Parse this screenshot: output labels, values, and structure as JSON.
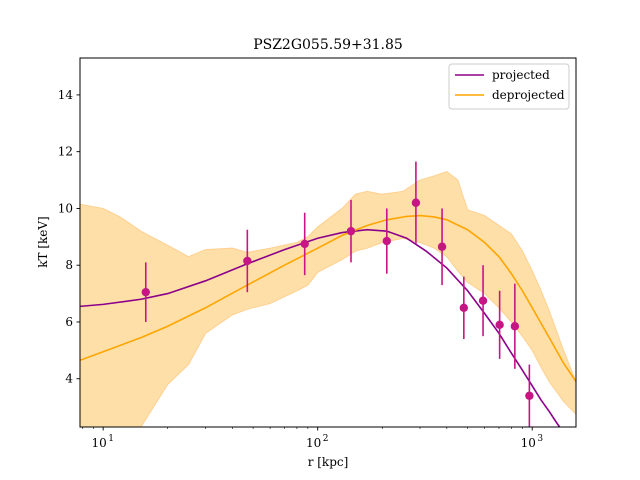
{
  "chart_data": {
    "type": "line",
    "title": "PSZ2G055.59+31.85",
    "xlabel": "r [kpc]",
    "ylabel": "kT [keV]",
    "xscale": "log",
    "xlim": [
      7.8,
      1600
    ],
    "ylim": [
      2.3,
      15.3
    ],
    "x_ticks": [
      {
        "value": 10,
        "label": "10"
      },
      {
        "value": 100,
        "label": "10"
      },
      {
        "value": 1000,
        "label": "10"
      }
    ],
    "x_tick_exponents": [
      "1",
      "2",
      "3"
    ],
    "y_ticks": [
      4,
      6,
      8,
      10,
      12,
      14
    ],
    "grid": false,
    "legend_position": "top-right",
    "colors": {
      "projected": "#8b008b",
      "deprojected": "#ffa500",
      "band": "#ffdfa8",
      "data_points": "#c71585"
    },
    "series": [
      {
        "name": "projected",
        "kind": "line",
        "x": [
          7.8,
          10,
          15,
          20,
          30,
          47,
          70,
          100,
          130,
          170,
          210,
          260,
          320,
          400,
          500,
          600,
          700,
          800,
          900,
          1000,
          1100,
          1200,
          1300,
          1400,
          1500,
          1600
        ],
        "y": [
          6.55,
          6.62,
          6.8,
          7.0,
          7.45,
          8.05,
          8.55,
          8.95,
          9.15,
          9.25,
          9.2,
          8.95,
          8.5,
          7.9,
          7.1,
          6.3,
          5.6,
          4.9,
          4.3,
          3.75,
          3.25,
          2.85,
          2.45,
          2.1,
          1.8,
          1.5
        ]
      },
      {
        "name": "deprojected",
        "kind": "line",
        "x": [
          7.8,
          10,
          15,
          20,
          30,
          47,
          70,
          100,
          130,
          170,
          210,
          260,
          300,
          350,
          400,
          500,
          600,
          700,
          800,
          900,
          1000,
          1200,
          1400,
          1600
        ],
        "y": [
          4.65,
          4.95,
          5.45,
          5.85,
          6.5,
          7.3,
          8.0,
          8.6,
          9.05,
          9.4,
          9.6,
          9.72,
          9.75,
          9.7,
          9.6,
          9.25,
          8.8,
          8.3,
          7.7,
          7.1,
          6.5,
          5.45,
          4.55,
          3.9
        ]
      }
    ],
    "band": {
      "name": "deprojected uncertainty",
      "x": [
        7.8,
        10,
        12,
        15,
        20,
        25,
        30,
        40,
        47,
        60,
        80,
        90,
        100,
        130,
        150,
        170,
        200,
        250,
        300,
        350,
        400,
        450,
        500,
        600,
        700,
        800,
        900,
        1000,
        1100,
        1200,
        1400,
        1600
      ],
      "upper": [
        10.15,
        10.0,
        9.7,
        9.2,
        8.7,
        8.3,
        8.55,
        8.6,
        8.45,
        8.6,
        8.8,
        9.0,
        9.35,
        10.0,
        10.5,
        10.6,
        10.5,
        10.6,
        11.0,
        11.15,
        11.3,
        11.0,
        9.95,
        9.75,
        9.4,
        9.1,
        8.5,
        7.8,
        7.1,
        6.4,
        5.0,
        3.9
      ],
      "lower": [
        2.3,
        2.3,
        2.3,
        2.3,
        3.8,
        4.5,
        5.6,
        6.25,
        6.45,
        6.65,
        7.1,
        7.3,
        7.75,
        8.2,
        8.5,
        8.6,
        8.8,
        8.95,
        8.8,
        8.6,
        8.3,
        7.8,
        7.4,
        7.0,
        6.5,
        6.0,
        5.5,
        5.0,
        4.4,
        3.9,
        3.2,
        2.75
      ]
    },
    "data_points": [
      {
        "x": 15.8,
        "y": 7.05,
        "err": 1.05
      },
      {
        "x": 47,
        "y": 8.15,
        "err": 1.1
      },
      {
        "x": 87,
        "y": 8.75,
        "err": 1.1
      },
      {
        "x": 143,
        "y": 9.2,
        "err": 1.1
      },
      {
        "x": 210,
        "y": 8.85,
        "err": 1.15
      },
      {
        "x": 287,
        "y": 10.2,
        "err": 1.45
      },
      {
        "x": 380,
        "y": 8.65,
        "err": 1.35
      },
      {
        "x": 480,
        "y": 6.5,
        "err": 1.1
      },
      {
        "x": 590,
        "y": 6.75,
        "err": 1.25
      },
      {
        "x": 705,
        "y": 5.9,
        "err": 1.2
      },
      {
        "x": 830,
        "y": 5.85,
        "err": 1.5
      },
      {
        "x": 970,
        "y": 3.4,
        "err": 1.1
      }
    ]
  }
}
